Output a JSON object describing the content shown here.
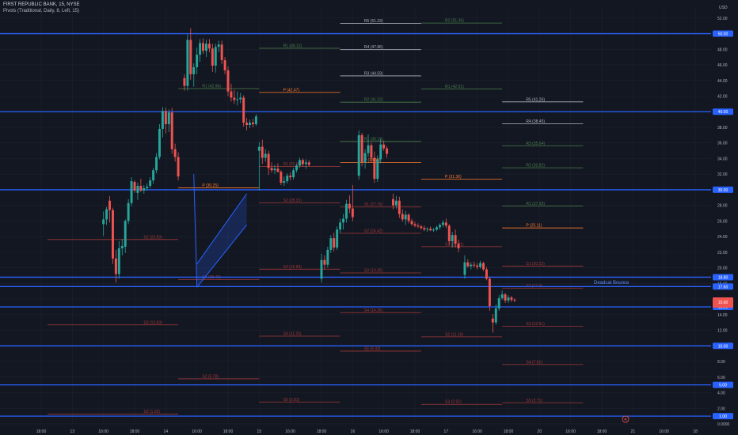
{
  "header": {
    "symbol_line": "FIRST REPUBLIC BANK, 15, NYSE",
    "indicator_line": "Pivots (Traditional, Daily, 8, Left, 15)"
  },
  "currency": "USD",
  "colors": {
    "background": "#131722",
    "grid": "#1e222d",
    "up": "#26a69a",
    "down": "#ef5350",
    "hline": "#2962ff",
    "channel": "#2962ff",
    "pivot_r": "#4a7f4a",
    "pivot_p": "#ff7b2e",
    "pivot_s": "#a2393a",
    "pivot_r_high": "#b2b5be"
  },
  "annotation": {
    "text": "Deadcat Bounce"
  },
  "chart_data": {
    "type": "candlestick",
    "title": "",
    "ylim": [
      0,
      53.5
    ],
    "y_ticks": [
      "52.00",
      "50.00",
      "48.00",
      "46.00",
      "44.00",
      "42.00",
      "40.00",
      "38.00",
      "36.00",
      "34.00",
      "32.00",
      "30.00",
      "28.00",
      "26.00",
      "24.00",
      "22.00",
      "20.00",
      "18.00",
      "16.00",
      "14.00",
      "12.00",
      "10.00",
      "8.00",
      "6.00",
      "4.00",
      "2.00",
      "0.0000"
    ],
    "x_ticks": [
      "18:00",
      "13",
      "16:00",
      "18:00",
      "14",
      "16:00",
      "18:00",
      "15",
      "16:00",
      "18:00",
      "16",
      "16:00",
      "18:00",
      "17",
      "16:00",
      "18:00",
      "20",
      "16:00",
      "18:00",
      "21",
      "16:00",
      "18"
    ],
    "horizontal_lines": [
      {
        "value": 50.0,
        "label": "50.00"
      },
      {
        "value": 40.0,
        "label": "40.00"
      },
      {
        "value": 30.0,
        "label": "30.00"
      },
      {
        "value": 18.8,
        "label": "18.80"
      },
      {
        "value": 17.6,
        "label": "17.60"
      },
      {
        "value": 15.0,
        "label": "15.00"
      },
      {
        "value": 10.0,
        "label": "10.00"
      },
      {
        "value": 5.0,
        "label": "5.00"
      },
      {
        "value": 1.0,
        "label": "1.00"
      }
    ],
    "current_price": {
      "value": 15.6,
      "label": "15.60"
    },
    "channel": {
      "lower": [
        [
          16.0,
          17.5
        ],
        [
          17.6,
          25.5
        ]
      ],
      "upper": [
        [
          16.0,
          20.5
        ],
        [
          17.6,
          29.5
        ]
      ],
      "left_edge": [
        [
          15.9,
          32.0
        ],
        [
          16.0,
          17.5
        ]
      ]
    },
    "candles": [
      [
        13.0,
        25.6,
        27.2,
        24.1,
        26.2
      ],
      [
        13.1,
        26.2,
        27.8,
        25.5,
        27.5
      ],
      [
        13.2,
        28.6,
        29.2,
        25.8,
        27.4
      ],
      [
        13.3,
        27.4,
        27.7,
        20.5,
        21.2
      ],
      [
        13.4,
        21.2,
        22.3,
        18.1,
        19.2
      ],
      [
        13.5,
        19.2,
        23.4,
        18.6,
        22.5
      ],
      [
        13.6,
        22.5,
        23.7,
        21.6,
        22.8
      ],
      [
        13.7,
        22.7,
        26.2,
        21.9,
        26.0
      ],
      [
        13.8,
        26.0,
        28.8,
        25.6,
        28.3
      ],
      [
        13.9,
        28.3,
        31.6,
        27.9,
        31.1
      ],
      [
        14.0,
        31.0,
        31.2,
        29.6,
        29.9
      ],
      [
        14.1,
        29.6,
        30.9,
        28.7,
        30.5
      ],
      [
        14.2,
        30.5,
        31.4,
        29.7,
        29.9
      ],
      [
        14.3,
        29.9,
        30.6,
        29.5,
        30.2
      ],
      [
        14.4,
        30.2,
        30.8,
        29.9,
        30.4
      ],
      [
        14.5,
        30.5,
        31.6,
        30.2,
        31.2
      ],
      [
        14.6,
        31.2,
        32.8,
        30.8,
        32.5
      ],
      [
        14.7,
        32.5,
        34.7,
        32.1,
        34.2
      ],
      [
        14.8,
        34.2,
        38.4,
        33.9,
        37.8
      ],
      [
        14.9,
        37.8,
        40.6,
        36.7,
        40.1
      ],
      [
        15.0,
        40.1,
        40.5,
        37.2,
        38.4
      ],
      [
        15.1,
        38.4,
        40.3,
        37.4,
        39.9
      ],
      [
        15.2,
        39.9,
        40.5,
        34.6,
        35.2
      ],
      [
        15.3,
        35.2,
        35.9,
        33.6,
        34.2
      ],
      [
        15.4,
        34.2,
        34.8,
        31.2,
        31.7
      ],
      [
        15.6,
        44.3,
        44.8,
        42.7,
        43.3
      ],
      [
        15.7,
        43.3,
        49.9,
        42.7,
        49.2
      ],
      [
        15.8,
        49.2,
        50.7,
        44.1,
        44.8
      ],
      [
        15.9,
        44.8,
        46.2,
        43.2,
        45.7
      ],
      [
        16.0,
        45.7,
        48.2,
        44.8,
        47.3
      ],
      [
        16.1,
        47.3,
        49.3,
        46.4,
        48.8
      ],
      [
        16.2,
        48.8,
        49.4,
        47.4,
        47.8
      ],
      [
        16.3,
        47.8,
        49.2,
        47.0,
        48.7
      ],
      [
        16.4,
        48.7,
        49.3,
        47.6,
        48.1
      ],
      [
        16.5,
        48.1,
        48.7,
        45.1,
        45.9
      ],
      [
        16.6,
        45.9,
        48.7,
        45.0,
        48.3
      ],
      [
        16.7,
        48.3,
        49.1,
        47.6,
        48.6
      ],
      [
        16.8,
        48.6,
        49.1,
        46.1,
        46.6
      ],
      [
        16.9,
        46.6,
        47.0,
        44.8,
        45.3
      ],
      [
        17.0,
        45.3,
        45.8,
        42.0,
        42.6
      ],
      [
        17.1,
        42.6,
        43.6,
        41.3,
        41.8
      ],
      [
        17.2,
        41.8,
        42.8,
        41.0,
        41.5
      ],
      [
        17.3,
        41.5,
        42.6,
        40.8,
        41.6
      ],
      [
        17.4,
        41.6,
        42.4,
        41.1,
        41.8
      ],
      [
        17.5,
        41.8,
        42.1,
        38.1,
        38.6
      ],
      [
        17.6,
        38.6,
        39.2,
        37.6,
        38.3
      ],
      [
        17.7,
        38.3,
        39.0,
        37.9,
        38.6
      ],
      [
        17.8,
        38.6,
        39.1,
        38.0,
        38.4
      ],
      [
        17.9,
        38.4,
        39.7,
        38.2,
        39.4
      ],
      [
        18.0,
        35.0,
        36.1,
        29.9,
        35.5
      ],
      [
        18.1,
        35.5,
        36.4,
        33.3,
        34.1
      ],
      [
        18.2,
        34.1,
        35.2,
        33.6,
        34.6
      ],
      [
        18.3,
        34.6,
        35.0,
        31.9,
        32.8
      ],
      [
        18.4,
        32.8,
        33.5,
        32.2,
        32.5
      ],
      [
        18.5,
        32.5,
        33.2,
        32.0,
        32.7
      ],
      [
        18.6,
        32.7,
        33.4,
        32.2,
        32.3
      ],
      [
        18.7,
        32.3,
        32.5,
        30.6,
        30.9
      ],
      [
        18.8,
        30.9,
        31.7,
        30.5,
        31.1
      ],
      [
        18.9,
        31.1,
        32.1,
        30.8,
        31.8
      ],
      [
        19.0,
        31.8,
        32.2,
        31.2,
        31.6
      ],
      [
        19.1,
        31.6,
        32.8,
        31.3,
        32.5
      ],
      [
        19.2,
        32.5,
        33.3,
        32.2,
        33.1
      ],
      [
        19.3,
        33.1,
        34.1,
        32.8,
        33.8
      ],
      [
        19.4,
        33.8,
        34.0,
        33.0,
        33.3
      ],
      [
        19.5,
        33.3,
        33.9,
        32.7,
        33.5
      ],
      [
        19.6,
        33.5,
        33.8,
        33.0,
        33.2
      ],
      [
        20.0,
        18.6,
        21.8,
        18.1,
        21.0
      ],
      [
        20.1,
        21.0,
        21.6,
        19.8,
        20.4
      ],
      [
        20.2,
        20.4,
        22.7,
        20.0,
        22.3
      ],
      [
        20.3,
        22.3,
        24.2,
        21.9,
        23.8
      ],
      [
        20.4,
        23.8,
        24.5,
        22.1,
        22.6
      ],
      [
        20.5,
        22.6,
        25.3,
        22.3,
        24.9
      ],
      [
        20.6,
        24.9,
        26.3,
        24.4,
        25.8
      ],
      [
        20.7,
        25.8,
        26.9,
        24.9,
        26.3
      ],
      [
        20.8,
        26.3,
        28.7,
        25.8,
        28.2
      ],
      [
        20.9,
        28.2,
        29.3,
        27.0,
        27.6
      ],
      [
        21.0,
        27.6,
        30.6,
        26.0,
        26.5
      ],
      [
        21.2,
        31.8,
        37.6,
        31.3,
        37.0
      ],
      [
        21.3,
        37.0,
        37.3,
        33.0,
        33.5
      ],
      [
        21.4,
        33.5,
        35.2,
        32.7,
        34.7
      ],
      [
        21.5,
        34.7,
        37.1,
        34.2,
        35.7
      ],
      [
        21.6,
        35.7,
        36.0,
        33.6,
        34.1
      ],
      [
        21.7,
        34.1,
        34.9,
        30.9,
        31.4
      ],
      [
        21.8,
        31.4,
        34.4,
        31.0,
        33.9
      ],
      [
        21.9,
        33.9,
        36.5,
        33.4,
        35.8
      ],
      [
        22.0,
        35.8,
        36.3,
        35.0,
        35.3
      ],
      [
        22.1,
        35.3,
        35.6,
        34.1,
        34.6
      ],
      [
        22.3,
        28.8,
        29.5,
        27.5,
        28.0
      ],
      [
        22.4,
        28.0,
        29.2,
        27.6,
        28.6
      ],
      [
        22.5,
        28.6,
        29.1,
        26.4,
        26.9
      ],
      [
        22.6,
        26.9,
        27.5,
        25.9,
        26.2
      ],
      [
        22.7,
        26.2,
        27.3,
        25.5,
        26.8
      ],
      [
        22.8,
        26.8,
        27.0,
        25.7,
        26.0
      ],
      [
        22.9,
        26.0,
        26.3,
        25.4,
        25.6
      ],
      [
        23.0,
        25.6,
        25.9,
        25.2,
        25.4
      ],
      [
        23.1,
        25.4,
        25.7,
        25.1,
        25.3
      ],
      [
        23.2,
        25.3,
        25.5,
        24.9,
        25.1
      ],
      [
        23.3,
        25.1,
        25.4,
        24.7,
        24.9
      ],
      [
        23.4,
        24.9,
        25.2,
        24.6,
        25.0
      ],
      [
        23.5,
        25.0,
        25.3,
        24.7,
        24.8
      ],
      [
        23.6,
        24.8,
        25.1,
        24.6,
        24.9
      ],
      [
        23.7,
        24.9,
        25.4,
        24.7,
        25.2
      ],
      [
        23.8,
        25.2,
        25.7,
        24.9,
        25.5
      ],
      [
        23.9,
        25.5,
        26.1,
        25.2,
        25.8
      ],
      [
        24.0,
        25.8,
        26.3,
        25.1,
        25.4
      ],
      [
        24.1,
        25.4,
        25.6,
        22.9,
        23.4
      ],
      [
        24.2,
        23.4,
        24.6,
        22.6,
        24.2
      ],
      [
        24.3,
        24.2,
        24.9,
        22.6,
        23.1
      ],
      [
        24.4,
        23.1,
        23.6,
        22.0,
        22.5
      ],
      [
        24.6,
        19.1,
        21.6,
        18.6,
        20.7
      ],
      [
        24.7,
        20.7,
        21.1,
        20.0,
        20.2
      ],
      [
        24.8,
        20.2,
        20.7,
        19.8,
        20.4
      ],
      [
        24.9,
        20.4,
        20.8,
        20.0,
        20.3
      ],
      [
        25.0,
        20.3,
        20.6,
        19.8,
        20.1
      ],
      [
        25.1,
        20.1,
        20.9,
        19.9,
        20.6
      ],
      [
        25.2,
        20.6,
        20.8,
        19.6,
        19.8
      ],
      [
        25.3,
        19.8,
        20.1,
        18.4,
        18.6
      ],
      [
        25.4,
        18.6,
        18.9,
        14.5,
        15.1
      ],
      [
        25.5,
        13.5,
        14.1,
        11.7,
        13.0
      ],
      [
        25.6,
        13.0,
        15.3,
        12.7,
        14.8
      ],
      [
        25.7,
        14.8,
        16.5,
        14.5,
        16.1
      ],
      [
        25.8,
        16.1,
        17.1,
        15.9,
        16.6
      ],
      [
        25.9,
        16.6,
        16.8,
        15.5,
        15.8
      ],
      [
        26.0,
        15.8,
        16.5,
        15.5,
        16.2
      ],
      [
        26.1,
        16.2,
        16.4,
        15.6,
        15.9
      ],
      [
        26.2,
        15.9,
        16.1,
        15.6,
        15.8
      ]
    ],
    "pivots": [
      {
        "kind": "s",
        "x0": 11.2,
        "x1": 15.4,
        "value": 23.63,
        "label": "S2 (23.63)"
      },
      {
        "kind": "s",
        "x0": 11.2,
        "x1": 15.4,
        "value": 12.69,
        "label": "S3 (12.69)"
      },
      {
        "kind": "r",
        "x0": 15.4,
        "x1": 18.0,
        "value": 42.96,
        "label": "R1 (42.96)"
      },
      {
        "kind": "p",
        "x0": 15.4,
        "x1": 18.0,
        "value": 30.25,
        "label": "P (30.25)"
      },
      {
        "kind": "s",
        "x0": 15.4,
        "x1": 18.0,
        "value": 18.49,
        "label": "S1 (18.49)"
      },
      {
        "kind": "s",
        "x0": 15.4,
        "x1": 18.0,
        "value": 5.78,
        "label": "S2 (5.78)"
      },
      {
        "kind": "s",
        "x0": 11.2,
        "x1": 15.4,
        "value": 1.25,
        "label": "S3 (1.25)"
      },
      {
        "kind": "r",
        "x0": 18.0,
        "x1": 20.6,
        "value": 48.13,
        "label": "R1 (48.13)"
      },
      {
        "kind": "p",
        "x0": 18.0,
        "x1": 20.6,
        "value": 42.47,
        "label": "P (42.47)"
      },
      {
        "kind": "s",
        "x0": 18.0,
        "x1": 20.6,
        "value": 32.97,
        "label": "S1 (32.97)"
      },
      {
        "kind": "s",
        "x0": 18.0,
        "x1": 20.6,
        "value": 28.31,
        "label": "S2 (28.31)"
      },
      {
        "kind": "s",
        "x0": 18.0,
        "x1": 20.6,
        "value": 19.83,
        "label": "S3 (19.83)"
      },
      {
        "kind": "s",
        "x0": 18.0,
        "x1": 20.6,
        "value": 11.25,
        "label": "S4 (11.25)"
      },
      {
        "kind": "s",
        "x0": 18.0,
        "x1": 20.6,
        "value": 2.81,
        "label": "S5 (2.81)"
      },
      {
        "kind": "rh",
        "x0": 20.6,
        "x1": 23.2,
        "value": 51.33,
        "label": "R5 (51.33)"
      },
      {
        "kind": "rh",
        "x0": 20.6,
        "x1": 23.2,
        "value": 47.96,
        "label": "R4 (47.96)"
      },
      {
        "kind": "rh",
        "x0": 20.6,
        "x1": 23.2,
        "value": 44.59,
        "label": "R3 (44.59)"
      },
      {
        "kind": "r",
        "x0": 20.6,
        "x1": 23.2,
        "value": 41.22,
        "label": "R2 (41.22)"
      },
      {
        "kind": "r",
        "x0": 20.6,
        "x1": 23.2,
        "value": 36.19,
        "label": "R1 (36.19)"
      },
      {
        "kind": "p",
        "x0": 20.6,
        "x1": 23.2,
        "value": 33.49,
        "label": "P (33.49)"
      },
      {
        "kind": "s",
        "x0": 20.6,
        "x1": 23.2,
        "value": 27.79,
        "label": "S1 (27.79)"
      },
      {
        "kind": "s",
        "x0": 20.6,
        "x1": 23.2,
        "value": 24.42,
        "label": "S2 (24.42)"
      },
      {
        "kind": "s",
        "x0": 20.6,
        "x1": 23.2,
        "value": 19.35,
        "label": "S3 (19.35)"
      },
      {
        "kind": "s",
        "x0": 20.6,
        "x1": 23.2,
        "value": 14.26,
        "label": "S4 (14.26)"
      },
      {
        "kind": "s",
        "x0": 20.6,
        "x1": 23.2,
        "value": 9.33,
        "label": "S5 (9.33)"
      },
      {
        "kind": "r",
        "x0": 23.2,
        "x1": 25.8,
        "value": 51.36,
        "label": "R2 (51.36)"
      },
      {
        "kind": "r",
        "x0": 23.2,
        "x1": 25.8,
        "value": 42.91,
        "label": "R1 (42.91)"
      },
      {
        "kind": "p",
        "x0": 23.2,
        "x1": 25.8,
        "value": 31.36,
        "label": "P (31.36)"
      },
      {
        "kind": "s",
        "x0": 23.2,
        "x1": 25.8,
        "value": 22.71,
        "label": "S1 (22.71)"
      },
      {
        "kind": "s",
        "x0": 23.2,
        "x1": 25.8,
        "value": 11.16,
        "label": "S2 (11.16)"
      },
      {
        "kind": "s",
        "x0": 23.2,
        "x1": 25.8,
        "value": 2.51,
        "label": "S3 (2.51)"
      },
      {
        "kind": "rh",
        "x0": 25.8,
        "x1": 28.4,
        "value": 41.26,
        "label": "R5 (41.26)"
      },
      {
        "kind": "rh",
        "x0": 25.8,
        "x1": 28.4,
        "value": 38.45,
        "label": "R4 (38.45)"
      },
      {
        "kind": "r",
        "x0": 25.8,
        "x1": 28.4,
        "value": 35.64,
        "label": "R3 (35.64)"
      },
      {
        "kind": "r",
        "x0": 25.8,
        "x1": 28.4,
        "value": 32.82,
        "label": "R2 (32.82)"
      },
      {
        "kind": "r",
        "x0": 25.8,
        "x1": 28.4,
        "value": 27.93,
        "label": "R1 (27.93)"
      },
      {
        "kind": "p",
        "x0": 25.8,
        "x1": 28.4,
        "value": 25.11,
        "label": "P (25.11)"
      },
      {
        "kind": "s",
        "x0": 25.8,
        "x1": 28.4,
        "value": 20.22,
        "label": "S1 (20.22)"
      },
      {
        "kind": "s",
        "x0": 25.8,
        "x1": 28.4,
        "value": 17.4,
        "label": "S2 (17.4)"
      },
      {
        "kind": "s",
        "x0": 25.8,
        "x1": 28.4,
        "value": 12.51,
        "label": "S3 (12.51)"
      },
      {
        "kind": "s",
        "x0": 25.8,
        "x1": 28.4,
        "value": 7.61,
        "label": "S4 (7.61)"
      },
      {
        "kind": "s",
        "x0": 25.8,
        "x1": 28.4,
        "value": 2.71,
        "label": "S5 (2.71)"
      }
    ]
  }
}
